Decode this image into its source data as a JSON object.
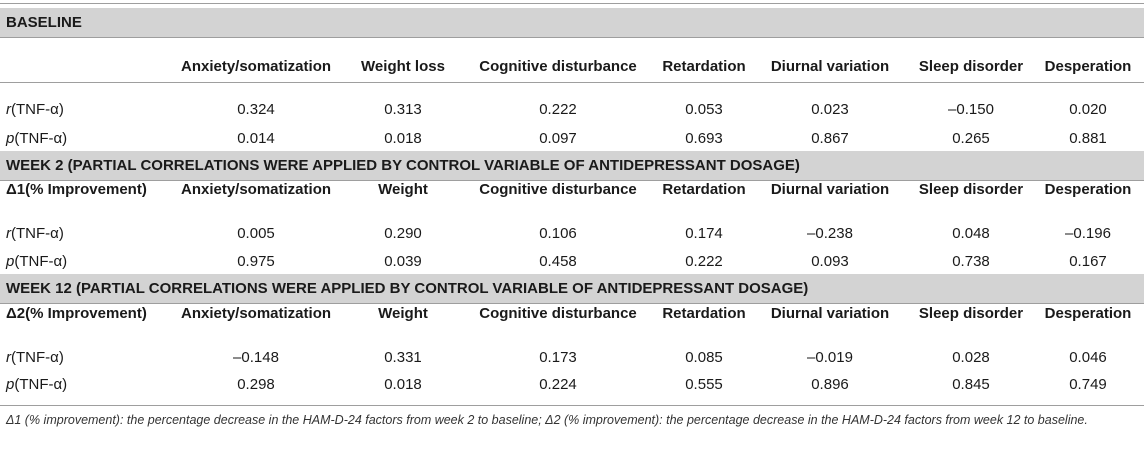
{
  "baseline": {
    "title": "BASELINE",
    "header": {
      "label": "",
      "cols": [
        "Anxiety/somatization",
        "Weight loss",
        "Cognitive disturbance",
        "Retardation",
        "Diurnal variation",
        "Sleep disorder",
        "Desperation"
      ]
    },
    "r_row": {
      "var": "r",
      "rest": "(TNF-α)",
      "values": [
        "0.324",
        "0.313",
        "0.222",
        "0.053",
        "0.023",
        "–0.150",
        "0.020"
      ]
    },
    "p_row": {
      "var": "p",
      "rest": "(TNF-α)",
      "values": [
        "0.014",
        "0.018",
        "0.097",
        "0.693",
        "0.867",
        "0.265",
        "0.881"
      ]
    }
  },
  "week2": {
    "title": "WEEK 2 (PARTIAL CORRELATIONS WERE APPLIED BY CONTROL VARIABLE OF ANTIDEPRESSANT DOSAGE)",
    "header": {
      "label": "Δ1(% Improvement)",
      "cols": [
        "Anxiety/somatization",
        "Weight",
        "Cognitive disturbance",
        "Retardation",
        "Diurnal variation",
        "Sleep disorder",
        "Desperation"
      ]
    },
    "r_row": {
      "var": "r",
      "rest": "(TNF-α)",
      "values": [
        "0.005",
        "0.290",
        "0.106",
        "0.174",
        "–0.238",
        "0.048",
        "–0.196"
      ]
    },
    "p_row": {
      "var": "p",
      "rest": "(TNF-α)",
      "values": [
        "0.975",
        "0.039",
        "0.458",
        "0.222",
        "0.093",
        "0.738",
        "0.167"
      ]
    }
  },
  "week12": {
    "title": "WEEK 12 (PARTIAL CORRELATIONS WERE APPLIED BY CONTROL VARIABLE OF ANTIDEPRESSANT DOSAGE)",
    "header": {
      "label": "Δ2(% Improvement)",
      "cols": [
        "Anxiety/somatization",
        "Weight",
        "Cognitive disturbance",
        "Retardation",
        "Diurnal variation",
        "Sleep disorder",
        "Desperation"
      ]
    },
    "r_row": {
      "var": "r",
      "rest": "(TNF-α)",
      "values": [
        "–0.148",
        "0.331",
        "0.173",
        "0.085",
        "–0.019",
        "0.028",
        "0.046"
      ]
    },
    "p_row": {
      "var": "p",
      "rest": "(TNF-α)",
      "values": [
        "0.298",
        "0.018",
        "0.224",
        "0.555",
        "0.896",
        "0.845",
        "0.749"
      ]
    }
  },
  "footnote": "Δ1 (% improvement): the percentage decrease in the HAM-D-24 factors from week 2 to baseline; Δ2 (% improvement): the percentage decrease in the HAM-D-24 factors from week 12 to baseline."
}
